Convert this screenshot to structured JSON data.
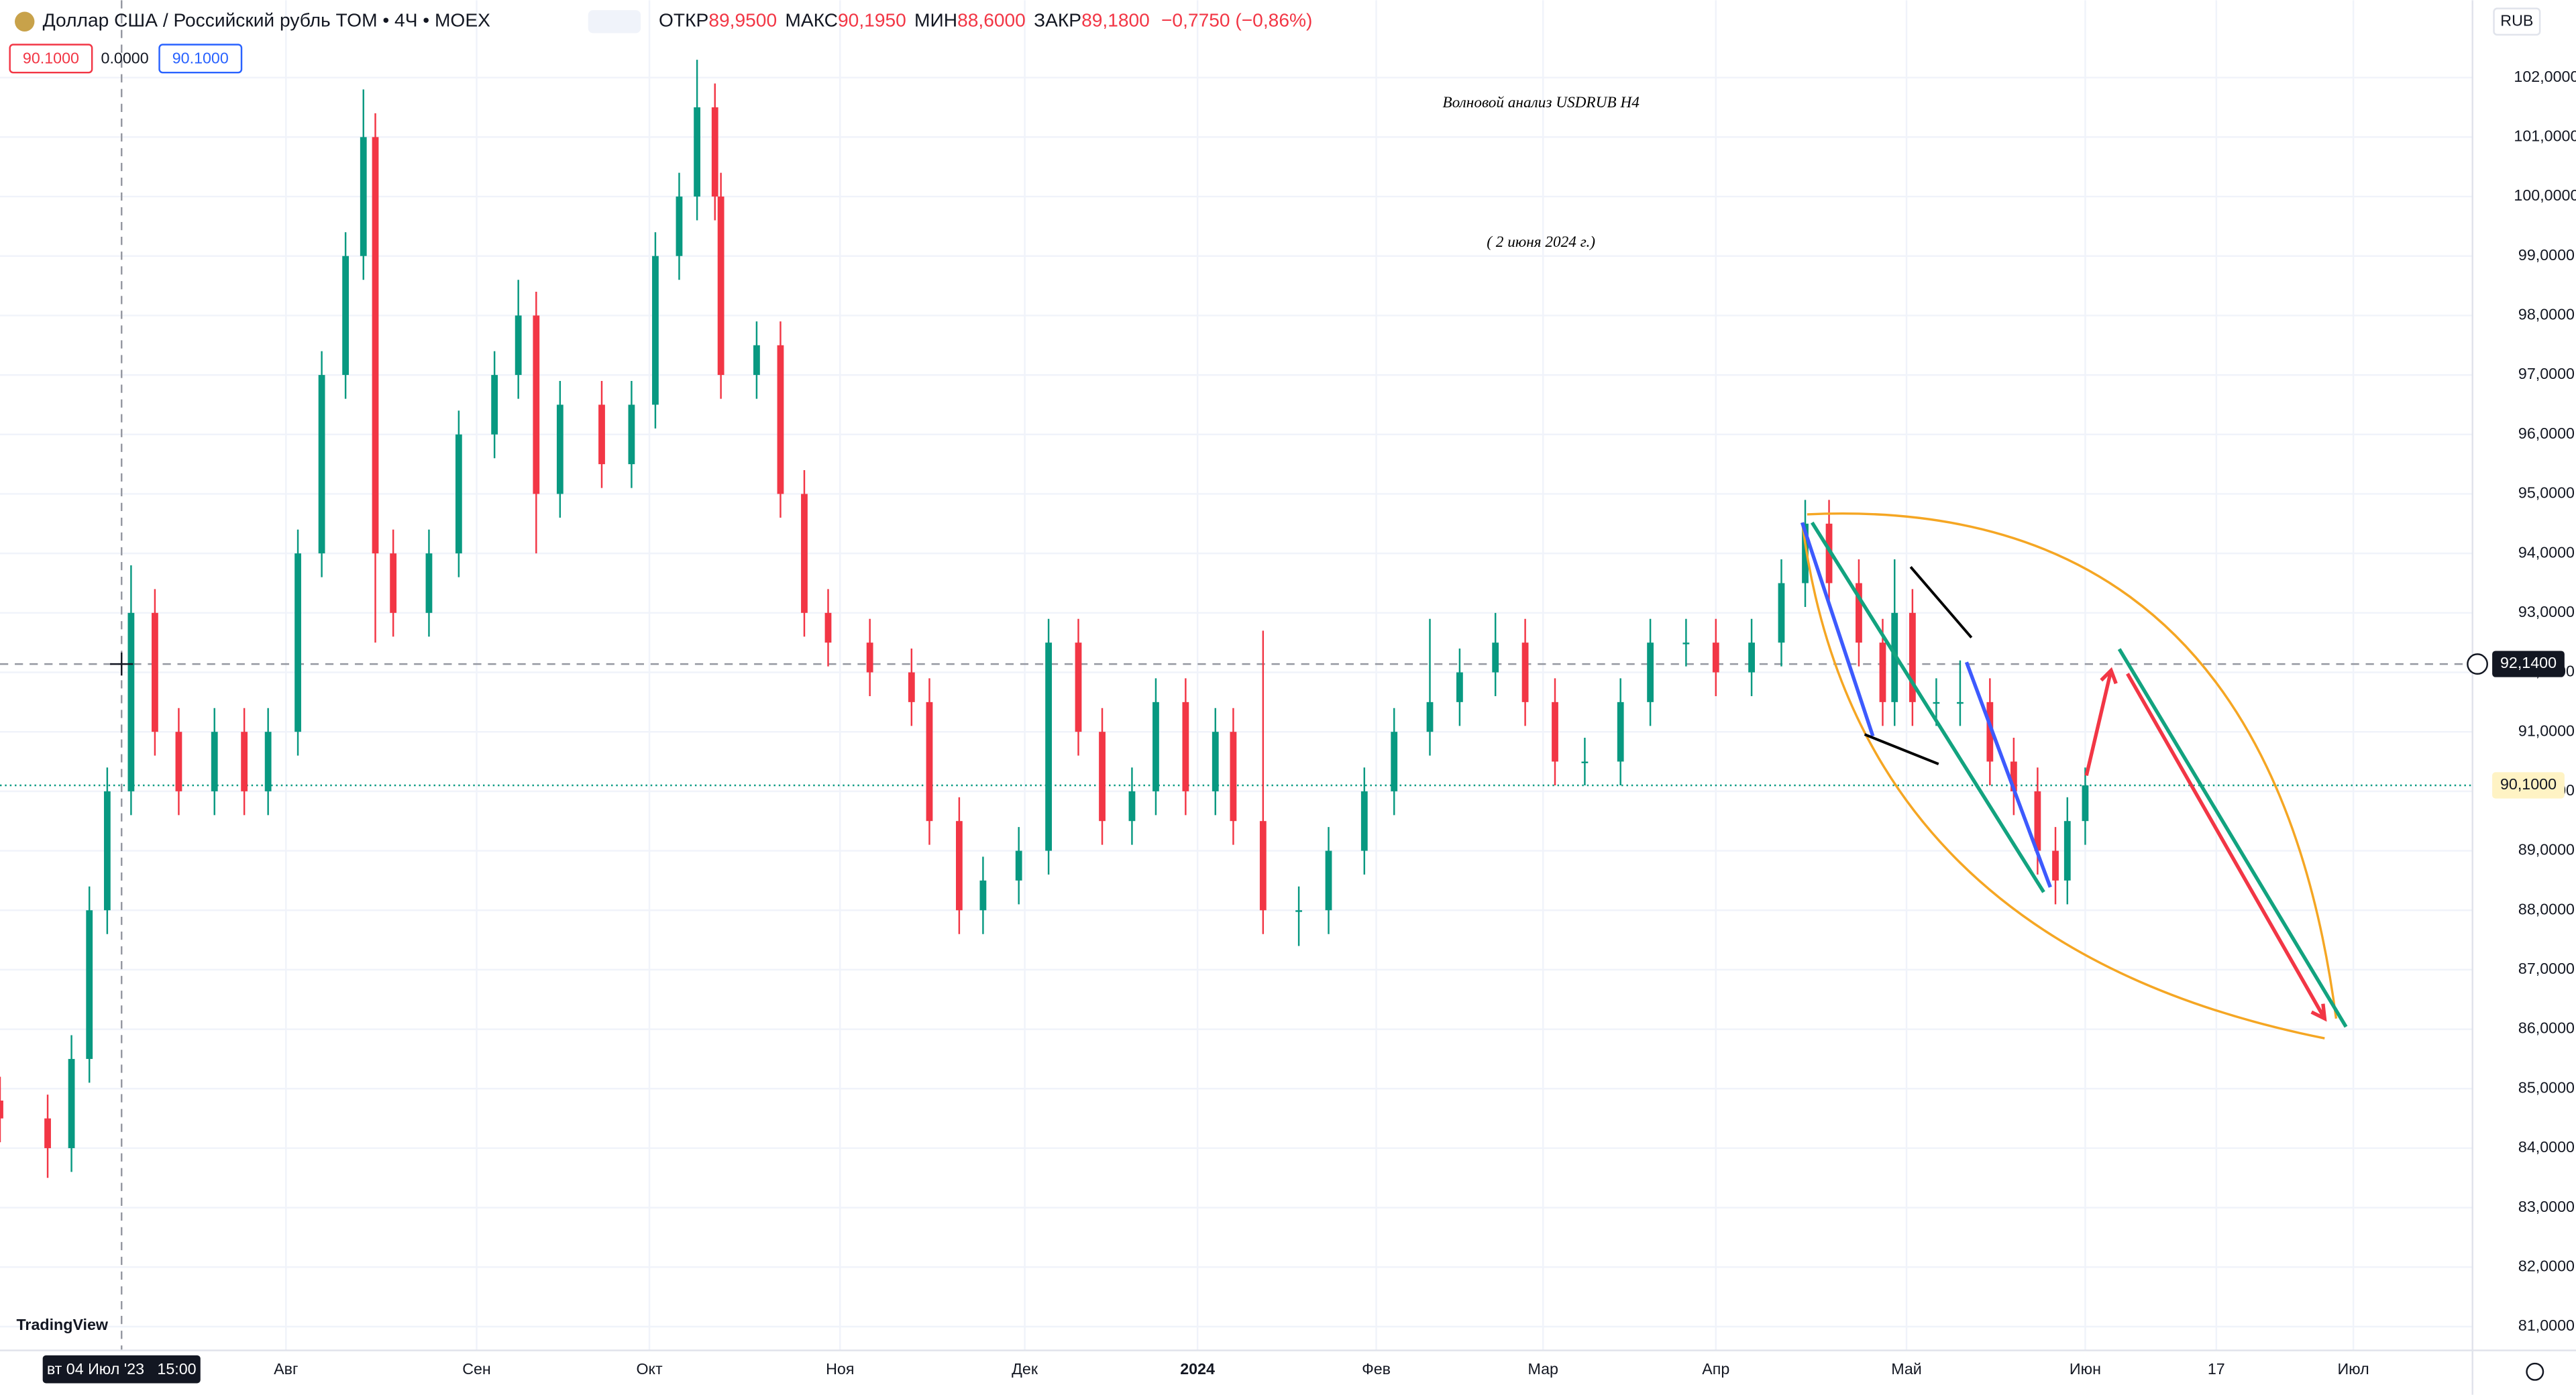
{
  "header": {
    "symbol": "Доллар США / Российский рубль TOM • 4Ч • MOEX",
    "ohlc": [
      {
        "label": "ОТКР",
        "value": "89,9500"
      },
      {
        "label": "МАКС",
        "value": "90,1950"
      },
      {
        "label": "МИН",
        "value": "88,6000"
      },
      {
        "label": "ЗАКР",
        "value": "89,1800"
      }
    ],
    "change": "−0,7750 (−0,86%)"
  },
  "badges": [
    "90.1000",
    "0.0000",
    "90.1000"
  ],
  "annotations": {
    "title": "Волновой анализ USDRUB H4",
    "date": "( 2 июня 2024 г.)"
  },
  "brand": "TradingView",
  "chart_data": {
    "type": "candlestick",
    "currency": "RUB",
    "x": [
      0,
      8,
      12,
      15,
      18,
      22,
      26,
      30,
      36,
      41,
      45,
      50,
      54,
      58,
      61,
      63,
      66,
      72,
      77,
      83,
      87,
      90,
      94,
      101,
      106,
      110,
      114,
      117,
      120,
      121,
      127,
      131,
      135,
      139,
      146,
      153,
      156,
      161,
      165,
      171,
      176,
      181,
      185,
      190,
      194,
      199,
      204,
      207,
      212,
      218,
      223,
      229,
      234,
      240,
      245,
      251,
      256,
      261,
      266,
      272,
      277,
      283,
      288,
      294,
      299,
      303,
      307,
      312,
      316,
      318,
      321,
      325,
      329,
      334,
      338,
      342,
      345,
      347,
      350
    ],
    "open": [
      84.8,
      84.5,
      84,
      85.5,
      88,
      90,
      93,
      91,
      90,
      91,
      90,
      91,
      94,
      97,
      99,
      101,
      94,
      93,
      94,
      96,
      97,
      98,
      95,
      96.5,
      95.5,
      96.5,
      99,
      100,
      101.5,
      100,
      97,
      97.5,
      95,
      93,
      92.5,
      92,
      91.5,
      89.5,
      88,
      88.5,
      89,
      92.5,
      91,
      89.5,
      90,
      91.5,
      90,
      91,
      89.5,
      88,
      88,
      89,
      90,
      91,
      91.5,
      92,
      92.5,
      91.5,
      90.5,
      90.5,
      91.5,
      92.5,
      92.5,
      92,
      92.5,
      93.5,
      94.5,
      93.5,
      92.5,
      91.5,
      93,
      91.5,
      91.5,
      91.5,
      90.5,
      90,
      89,
      88.5,
      89.5
    ],
    "high": [
      85.2,
      84.9,
      85.9,
      88.4,
      90.4,
      93.8,
      93.4,
      91.4,
      91.4,
      91.4,
      91.4,
      94.4,
      97.4,
      99.4,
      101.8,
      101.4,
      94.4,
      94.4,
      96.4,
      97.4,
      98.6,
      98.4,
      96.9,
      96.9,
      96.9,
      99.4,
      100.4,
      102.3,
      101.9,
      100.4,
      97.9,
      97.9,
      95.4,
      93.4,
      92.9,
      92.4,
      91.9,
      89.9,
      88.9,
      89.4,
      92.9,
      92.9,
      91.4,
      90.4,
      91.9,
      91.9,
      91.4,
      91.4,
      92.7,
      88.4,
      89.4,
      90.4,
      91.4,
      92.9,
      92.4,
      93,
      92.9,
      91.9,
      90.9,
      91.9,
      92.9,
      92.9,
      92.9,
      92.9,
      93.9,
      94.9,
      94.9,
      93.9,
      92.9,
      93.9,
      93.4,
      91.9,
      92.2,
      91.9,
      90.9,
      90.4,
      89.4,
      89.9,
      90.4
    ],
    "low": [
      84.1,
      83.5,
      83.6,
      85.1,
      87.6,
      89.6,
      90.6,
      89.6,
      89.6,
      89.6,
      89.6,
      90.6,
      93.6,
      96.6,
      98.6,
      92.5,
      92.6,
      92.6,
      93.6,
      95.6,
      96.6,
      94,
      94.6,
      95.1,
      95.1,
      96.1,
      98.6,
      99.6,
      99.6,
      96.6,
      96.6,
      94.6,
      92.6,
      92.1,
      91.6,
      91.1,
      89.1,
      87.6,
      87.6,
      88.1,
      88.6,
      90.6,
      89.1,
      89.1,
      89.6,
      89.6,
      89.6,
      89.1,
      87.6,
      87.4,
      87.6,
      88.6,
      89.6,
      90.6,
      91.1,
      91.6,
      91.1,
      90.1,
      90.1,
      90.1,
      91.1,
      92.1,
      91.6,
      91.6,
      92.1,
      93.1,
      93.1,
      92.1,
      91.1,
      91.1,
      91.1,
      91.1,
      91.1,
      90.1,
      89.6,
      88.6,
      88.1,
      88.1,
      89.1
    ],
    "close": [
      84.5,
      84,
      85.5,
      88,
      90,
      93,
      91,
      90,
      91,
      90,
      91,
      94,
      97,
      99,
      101,
      94,
      93,
      94,
      96,
      97,
      98,
      95,
      96.5,
      95.5,
      96.5,
      99,
      100,
      101.5,
      100,
      97,
      97.5,
      95,
      93,
      92.5,
      92,
      91.5,
      89.5,
      88,
      88.5,
      89,
      92.5,
      91,
      89.5,
      90,
      91.5,
      90,
      91,
      89.5,
      88,
      88,
      89,
      90,
      91,
      91.5,
      92,
      92.5,
      91.5,
      90.5,
      90.5,
      91.5,
      92.5,
      92.5,
      92,
      92.5,
      93.5,
      94.5,
      93.5,
      92.5,
      91.5,
      93,
      91.5,
      91.5,
      91.5,
      90.5,
      90,
      89,
      88.5,
      89.5,
      90.1
    ],
    "up_color": "#089981",
    "down_color": "#f23645",
    "xlim": [
      0,
      415
    ],
    "xticks": [
      {
        "value": 48,
        "label": "Авг"
      },
      {
        "value": 80,
        "label": "Сен"
      },
      {
        "value": 109,
        "label": "Окт"
      },
      {
        "value": 141,
        "label": "Ноя"
      },
      {
        "value": 172,
        "label": "Дек"
      },
      {
        "value": 201,
        "label": "2024"
      },
      {
        "value": 231,
        "label": "Фев"
      },
      {
        "value": 259,
        "label": "Мар"
      },
      {
        "value": 288,
        "label": "Апр"
      },
      {
        "value": 320,
        "label": "Май"
      },
      {
        "value": 350,
        "label": "Июн"
      },
      {
        "value": 372,
        "label": "17"
      },
      {
        "value": 395,
        "label": "Июл"
      }
    ],
    "ylim": [
      80.6,
      103.3
    ],
    "yticks": [
      {
        "value": 81,
        "label": "81,0000"
      },
      {
        "value": 82,
        "label": "82,0000"
      },
      {
        "value": 83,
        "label": "83,0000"
      },
      {
        "value": 84,
        "label": "84,0000"
      },
      {
        "value": 85,
        "label": "85,0000"
      },
      {
        "value": 86,
        "label": "86,0000"
      },
      {
        "value": 87,
        "label": "87,0000"
      },
      {
        "value": 88,
        "label": "88,0000"
      },
      {
        "value": 89,
        "label": "89,0000"
      },
      {
        "value": 90,
        "label": "90,0000"
      },
      {
        "value": 91,
        "label": "91,0000"
      },
      {
        "value": 92,
        "label": "92,0000"
      },
      {
        "value": 93,
        "label": "93,0000"
      },
      {
        "value": 94,
        "label": "94,0000"
      },
      {
        "value": 95,
        "label": "95,0000"
      },
      {
        "value": 96,
        "label": "96,0000"
      },
      {
        "value": 97,
        "label": "97,0000"
      },
      {
        "value": 98,
        "label": "98,0000"
      },
      {
        "value": 99,
        "label": "99,0000"
      },
      {
        "value": 100,
        "label": "100,0000"
      },
      {
        "value": 101,
        "label": "101,0000"
      },
      {
        "value": 102,
        "label": "102,0000"
      }
    ],
    "grid": true,
    "crosshair": {
      "value": 92.14,
      "label": "92,1400",
      "time": "вт 04 Июл '23   15:00"
    },
    "last": {
      "value": 90.1,
      "label": "90,1000"
    }
  }
}
